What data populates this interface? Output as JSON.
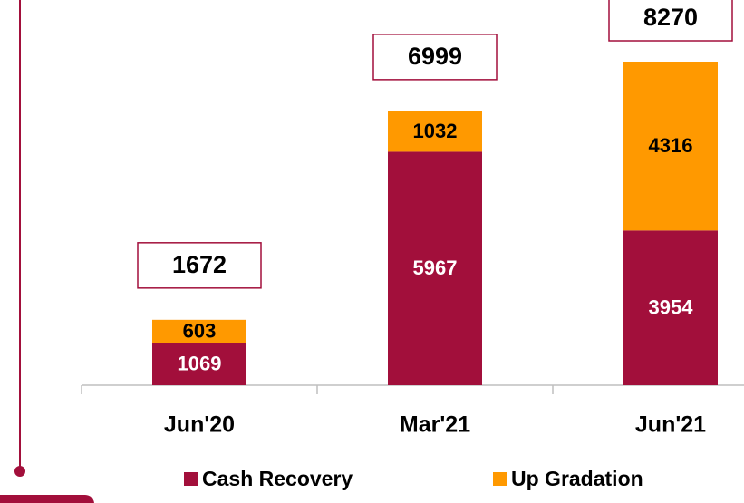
{
  "chart_data": {
    "type": "stacked_bar",
    "categories": [
      "Jun'20",
      "Mar'21",
      "Jun'21"
    ],
    "series": [
      {
        "name": "Cash Recovery",
        "color": "#a20f3b",
        "values": [
          1069,
          5967,
          3954
        ]
      },
      {
        "name": "Up Gradation",
        "color": "#ff9900",
        "values": [
          603,
          1032,
          4316
        ]
      }
    ],
    "totals": [
      1672,
      6999,
      8270
    ],
    "legend": "bottom"
  }
}
